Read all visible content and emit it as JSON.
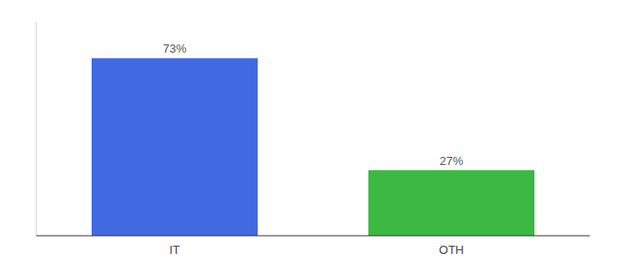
{
  "chart_data": {
    "type": "bar",
    "categories": [
      "IT",
      "OTH"
    ],
    "values": [
      73,
      27
    ],
    "colors": [
      "#4169E1",
      "#3CB943"
    ],
    "ylim": [
      0,
      88
    ],
    "data_labels": true,
    "value_labels": [
      "73%",
      "27%"
    ],
    "tick_labels": "x",
    "grid": false
  }
}
